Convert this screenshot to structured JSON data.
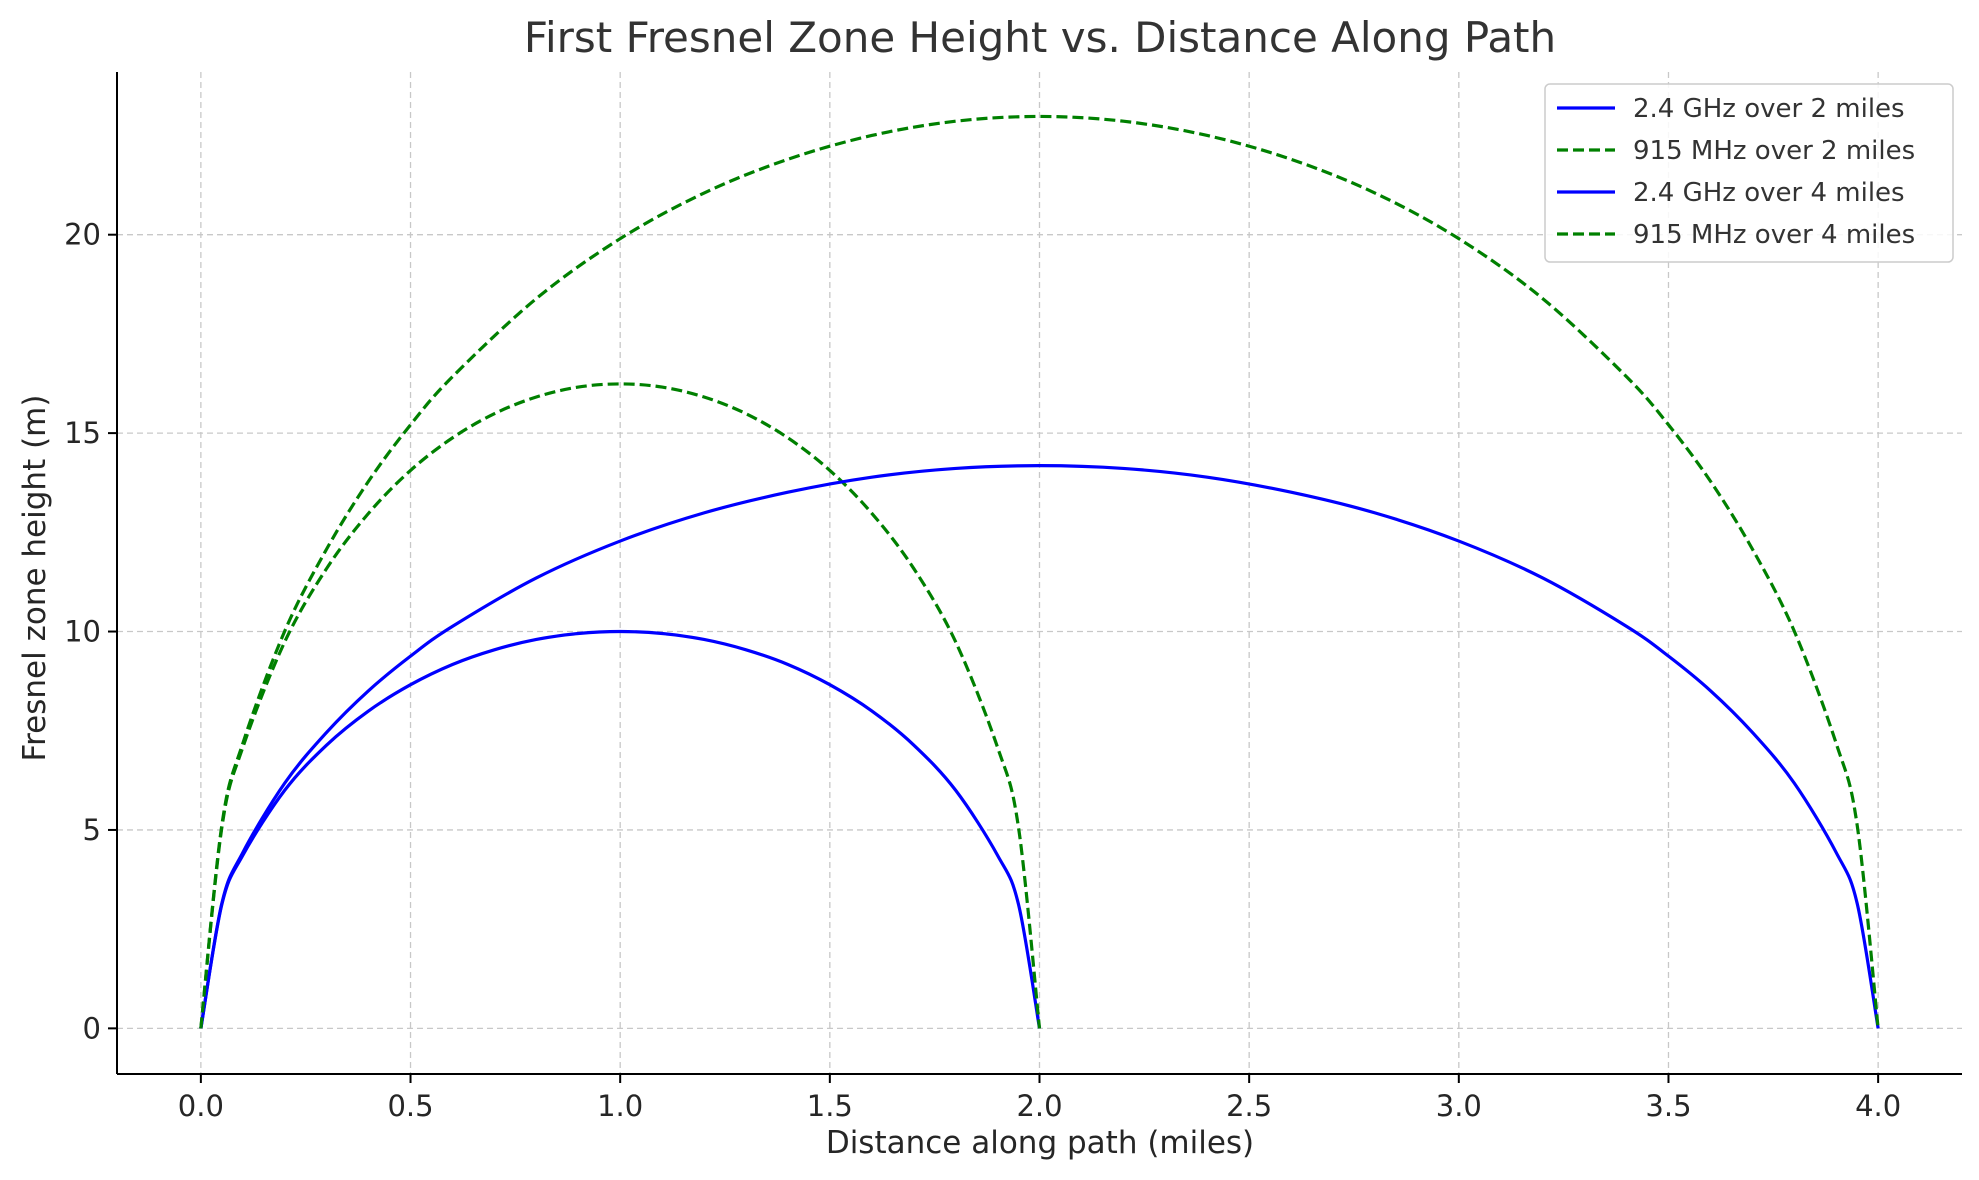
{
  "chart_data": {
    "type": "line",
    "title": "First Fresnel Zone Height vs. Distance Along Path",
    "xlabel": "Distance along path (miles)",
    "ylabel": "Fresnel zone height (m)",
    "xlim": [
      -0.2,
      4.2
    ],
    "ylim": [
      -1.15,
      24.1
    ],
    "xticks": [
      0.0,
      0.5,
      1.0,
      1.5,
      2.0,
      2.5,
      3.0,
      3.5,
      4.0
    ],
    "xtick_labels": [
      "0.0",
      "0.5",
      "1.0",
      "1.5",
      "2.0",
      "2.5",
      "3.0",
      "3.5",
      "4.0"
    ],
    "yticks": [
      0,
      5,
      10,
      15,
      20
    ],
    "ytick_labels": [
      "0",
      "5",
      "10",
      "15",
      "20"
    ],
    "grid": true,
    "legend_position": "top-right",
    "series": [
      {
        "name": "2.4 GHz over 2 miles",
        "color": "#0000ff",
        "dashed": false,
        "x": [
          0.0,
          0.05,
          0.1,
          0.2,
          0.3,
          0.4,
          0.5,
          0.6,
          0.7,
          0.8,
          0.9,
          1.0,
          1.1,
          1.2,
          1.3,
          1.4,
          1.5,
          1.6,
          1.7,
          1.8,
          1.9,
          1.95,
          2.0
        ],
        "y": [
          0.0,
          3.12,
          4.36,
          6.0,
          7.14,
          8.0,
          8.66,
          9.17,
          9.54,
          9.8,
          9.95,
          10.0,
          9.95,
          9.8,
          9.54,
          9.17,
          8.66,
          8.0,
          7.14,
          6.0,
          4.36,
          3.12,
          0.0
        ]
      },
      {
        "name": "915 MHz over 2 miles",
        "color": "#008000",
        "dashed": true,
        "x": [
          0.0,
          0.05,
          0.1,
          0.2,
          0.3,
          0.4,
          0.5,
          0.6,
          0.7,
          0.8,
          0.9,
          1.0,
          1.1,
          1.2,
          1.3,
          1.4,
          1.5,
          1.6,
          1.7,
          1.8,
          1.9,
          1.95,
          2.0
        ],
        "y": [
          0.0,
          5.06,
          7.08,
          9.74,
          11.59,
          12.98,
          14.06,
          14.88,
          15.49,
          15.91,
          16.16,
          16.24,
          16.16,
          15.91,
          15.49,
          14.88,
          14.06,
          12.98,
          11.59,
          9.74,
          7.08,
          5.06,
          0.0
        ]
      },
      {
        "name": "2.4 GHz over 4 miles",
        "color": "#0000ff",
        "dashed": false,
        "x": [
          0.0,
          0.05,
          0.1,
          0.2,
          0.3,
          0.4,
          0.5,
          0.6,
          0.8,
          1.0,
          1.2,
          1.4,
          1.6,
          1.8,
          2.0,
          2.2,
          2.4,
          2.6,
          2.8,
          3.0,
          3.2,
          3.4,
          3.5,
          3.6,
          3.7,
          3.8,
          3.9,
          3.95,
          4.0
        ],
        "y": [
          0.0,
          3.15,
          4.43,
          6.18,
          7.46,
          8.51,
          9.38,
          10.13,
          11.35,
          12.28,
          12.99,
          13.51,
          13.89,
          14.11,
          14.18,
          14.11,
          13.89,
          13.51,
          12.99,
          12.28,
          11.35,
          10.13,
          9.38,
          8.51,
          7.46,
          6.18,
          4.43,
          3.15,
          0.0
        ]
      },
      {
        "name": "915 MHz over 4 miles",
        "color": "#008000",
        "dashed": true,
        "x": [
          0.0,
          0.05,
          0.1,
          0.2,
          0.3,
          0.4,
          0.5,
          0.6,
          0.8,
          1.0,
          1.2,
          1.4,
          1.6,
          1.8,
          2.0,
          2.2,
          2.4,
          2.6,
          2.8,
          3.0,
          3.2,
          3.4,
          3.5,
          3.6,
          3.7,
          3.8,
          3.9,
          3.95,
          4.0
        ],
        "y": [
          0.0,
          5.12,
          7.18,
          10.01,
          12.08,
          13.79,
          15.21,
          16.42,
          18.39,
          19.9,
          21.05,
          21.9,
          22.5,
          22.86,
          22.98,
          22.86,
          22.5,
          21.9,
          21.05,
          19.9,
          18.39,
          16.42,
          15.21,
          13.79,
          12.08,
          10.01,
          7.18,
          5.12,
          0.0
        ]
      }
    ]
  }
}
